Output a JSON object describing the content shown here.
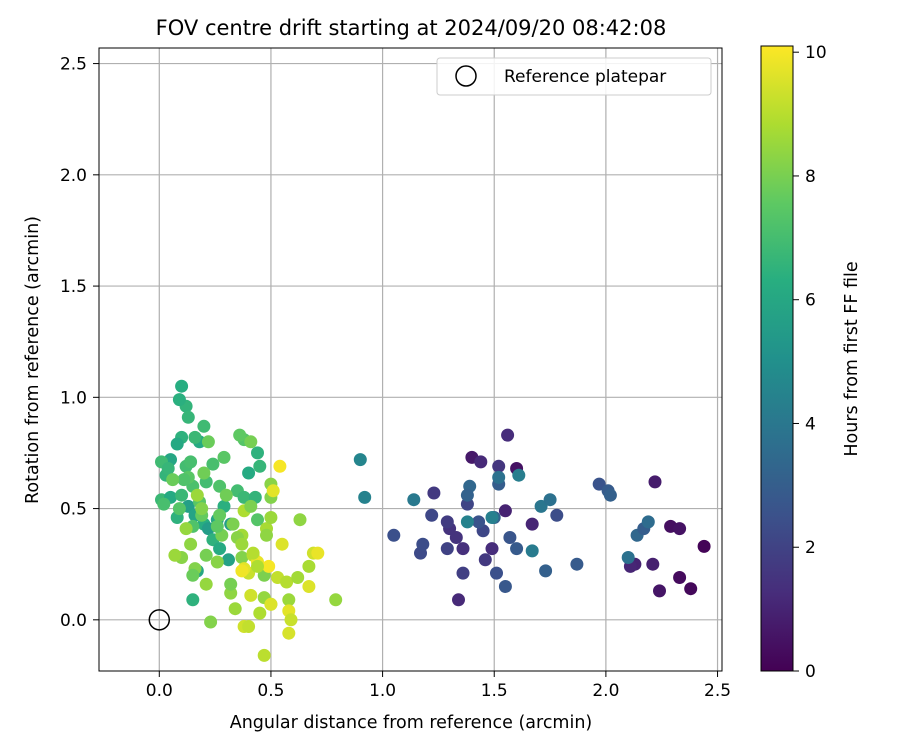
{
  "chart_data": {
    "type": "scatter",
    "title": "FOV centre drift starting at 2024/09/20 08:42:08",
    "xlabel": "Angular distance from reference (arcmin)",
    "ylabel": "Rotation from reference (arcmin)",
    "xlim": [
      -0.27,
      2.52
    ],
    "ylim": [
      -0.23,
      2.57
    ],
    "xticks": [
      0.0,
      0.5,
      1.0,
      1.5,
      2.0,
      2.5
    ],
    "xtick_labels": [
      "0.0",
      "0.5",
      "1.0",
      "1.5",
      "2.0",
      "2.5"
    ],
    "yticks": [
      0.0,
      0.5,
      1.0,
      1.5,
      2.0,
      2.5
    ],
    "ytick_labels": [
      "0.0",
      "0.5",
      "1.0",
      "1.5",
      "2.0",
      "2.5"
    ],
    "grid": true,
    "legend": {
      "placement": "upper right",
      "entries": [
        {
          "label": "Reference platepar",
          "marker": "open-circle",
          "x": 0.0,
          "y": 0.0
        }
      ]
    },
    "colorbar": {
      "label": "Hours from first FF file",
      "colormap": "viridis",
      "range": [
        0,
        10.1
      ],
      "ticks": [
        0,
        2,
        4,
        6,
        8,
        10
      ],
      "tick_labels": [
        "0",
        "2",
        "4",
        "6",
        "8",
        "10"
      ]
    },
    "points": [
      [
        2.44,
        0.33,
        0.1
      ],
      [
        2.38,
        0.14,
        0.2
      ],
      [
        2.33,
        0.19,
        0.3
      ],
      [
        2.29,
        0.42,
        0.4
      ],
      [
        2.33,
        0.41,
        0.5
      ],
      [
        2.24,
        0.13,
        0.6
      ],
      [
        2.22,
        0.62,
        0.8
      ],
      [
        2.21,
        0.25,
        0.9
      ],
      [
        2.13,
        0.25,
        1.0
      ],
      [
        2.11,
        0.24,
        1.1
      ],
      [
        1.55,
        0.49,
        1.0
      ],
      [
        1.6,
        0.68,
        0.5
      ],
      [
        1.4,
        0.73,
        0.7
      ],
      [
        1.44,
        0.71,
        1.2
      ],
      [
        1.67,
        0.43,
        1.1
      ],
      [
        1.52,
        0.69,
        1.6
      ],
      [
        1.36,
        0.32,
        1.4
      ],
      [
        1.49,
        0.32,
        1.3
      ],
      [
        1.3,
        0.41,
        1.5
      ],
      [
        1.23,
        0.57,
        1.7
      ],
      [
        1.29,
        0.44,
        1.8
      ],
      [
        1.33,
        0.37,
        1.5
      ],
      [
        1.38,
        0.52,
        2.1
      ],
      [
        1.46,
        0.27,
        1.7
      ],
      [
        1.36,
        0.21,
        1.9
      ],
      [
        1.34,
        0.09,
        1.2
      ],
      [
        1.29,
        0.32,
        2.0
      ],
      [
        1.22,
        0.47,
        2.2
      ],
      [
        1.17,
        0.3,
        2.3
      ],
      [
        1.18,
        0.34,
        2.4
      ],
      [
        1.05,
        0.38,
        2.5
      ],
      [
        1.45,
        0.4,
        2.2
      ],
      [
        1.43,
        0.44,
        2.6
      ],
      [
        1.51,
        0.21,
        2.5
      ],
      [
        1.55,
        0.15,
        2.8
      ],
      [
        1.56,
        0.83,
        1.3
      ],
      [
        1.57,
        0.37,
        2.7
      ],
      [
        1.6,
        0.32,
        2.9
      ],
      [
        1.5,
        0.46,
        3.2
      ],
      [
        1.52,
        0.61,
        3.0
      ],
      [
        1.73,
        0.22,
        3.1
      ],
      [
        1.78,
        0.47,
        2.4
      ],
      [
        1.87,
        0.25,
        2.9
      ],
      [
        1.97,
        0.61,
        2.6
      ],
      [
        2.01,
        0.58,
        2.9
      ],
      [
        2.02,
        0.56,
        3.1
      ],
      [
        2.1,
        0.28,
        3.8
      ],
      [
        2.14,
        0.38,
        3.4
      ],
      [
        2.17,
        0.41,
        3.0
      ],
      [
        2.19,
        0.44,
        3.6
      ],
      [
        1.39,
        0.6,
        3.4
      ],
      [
        1.38,
        0.56,
        3.2
      ],
      [
        1.52,
        0.64,
        3.8
      ],
      [
        1.61,
        0.65,
        4.3
      ],
      [
        1.71,
        0.51,
        4.0
      ],
      [
        1.75,
        0.54,
        3.8
      ],
      [
        1.67,
        0.31,
        4.2
      ],
      [
        1.49,
        0.46,
        4.4
      ],
      [
        1.38,
        0.44,
        4.5
      ],
      [
        1.14,
        0.54,
        4.1
      ],
      [
        0.9,
        0.72,
        4.6
      ],
      [
        0.92,
        0.55,
        4.5
      ],
      [
        0.1,
        1.05,
        6.3
      ],
      [
        0.12,
        0.96,
        6.6
      ],
      [
        0.09,
        0.99,
        6.4
      ],
      [
        0.13,
        0.91,
        6.7
      ],
      [
        0.2,
        0.87,
        6.9
      ],
      [
        0.18,
        0.8,
        6.2
      ],
      [
        0.1,
        0.82,
        6.5
      ],
      [
        0.16,
        0.82,
        6.8
      ],
      [
        0.08,
        0.79,
        6.1
      ],
      [
        0.05,
        0.72,
        6.0
      ],
      [
        0.01,
        0.71,
        6.9
      ],
      [
        0.03,
        0.65,
        6.6
      ],
      [
        0.12,
        0.69,
        7.0
      ],
      [
        0.14,
        0.71,
        7.1
      ],
      [
        0.04,
        0.68,
        6.7
      ],
      [
        0.01,
        0.54,
        6.8
      ],
      [
        0.05,
        0.55,
        6.2
      ],
      [
        0.08,
        0.46,
        6.5
      ],
      [
        0.1,
        0.56,
        6.8
      ],
      [
        0.13,
        0.51,
        5.7
      ],
      [
        0.16,
        0.47,
        5.9
      ],
      [
        0.2,
        0.43,
        6.3
      ],
      [
        0.22,
        0.41,
        5.6
      ],
      [
        0.26,
        0.45,
        6.0
      ],
      [
        0.29,
        0.51,
        6.4
      ],
      [
        0.32,
        0.43,
        5.6
      ],
      [
        0.24,
        0.36,
        6.5
      ],
      [
        0.27,
        0.32,
        6.2
      ],
      [
        0.31,
        0.27,
        5.8
      ],
      [
        0.17,
        0.22,
        6.0
      ],
      [
        0.15,
        0.42,
        7.3
      ],
      [
        0.09,
        0.5,
        7.4
      ],
      [
        0.18,
        0.53,
        7.5
      ],
      [
        0.15,
        0.6,
        7.2
      ],
      [
        0.21,
        0.62,
        7.0
      ],
      [
        0.24,
        0.7,
        7.1
      ],
      [
        0.27,
        0.6,
        7.3
      ],
      [
        0.29,
        0.73,
        7.5
      ],
      [
        0.35,
        0.58,
        7.0
      ],
      [
        0.38,
        0.55,
        6.8
      ],
      [
        0.43,
        0.55,
        6.6
      ],
      [
        0.45,
        0.69,
        6.7
      ],
      [
        0.44,
        0.75,
        6.5
      ],
      [
        0.4,
        0.66,
        6.2
      ],
      [
        0.38,
        0.81,
        7.4
      ],
      [
        0.36,
        0.83,
        7.6
      ],
      [
        0.41,
        0.8,
        8.0
      ],
      [
        0.22,
        0.8,
        7.8
      ],
      [
        0.2,
        0.66,
        7.9
      ],
      [
        0.27,
        0.47,
        7.7
      ],
      [
        0.26,
        0.26,
        8.3
      ],
      [
        0.21,
        0.29,
        8.0
      ],
      [
        0.16,
        0.23,
        8.2
      ],
      [
        0.14,
        0.34,
        8.4
      ],
      [
        0.12,
        0.41,
        8.5
      ],
      [
        0.1,
        0.28,
        8.3
      ],
      [
        0.07,
        0.29,
        8.6
      ],
      [
        0.15,
        0.2,
        7.8
      ],
      [
        0.15,
        0.09,
        6.5
      ],
      [
        0.21,
        0.16,
        8.5
      ],
      [
        0.23,
        -0.01,
        8.2
      ],
      [
        0.32,
        0.12,
        8.4
      ],
      [
        0.34,
        0.05,
        8.6
      ],
      [
        0.32,
        0.16,
        8.0
      ],
      [
        0.37,
        0.28,
        8.2
      ],
      [
        0.37,
        0.38,
        8.7
      ],
      [
        0.38,
        0.49,
        8.9
      ],
      [
        0.41,
        0.51,
        8.1
      ],
      [
        0.44,
        0.45,
        7.4
      ],
      [
        0.48,
        0.41,
        8.8
      ],
      [
        0.5,
        0.46,
        8.6
      ],
      [
        0.48,
        0.38,
        8.4
      ],
      [
        0.5,
        0.55,
        8.2
      ],
      [
        0.5,
        0.61,
        8.3
      ],
      [
        0.53,
        0.19,
        9.2
      ],
      [
        0.57,
        0.17,
        9.0
      ],
      [
        0.55,
        0.34,
        9.6
      ],
      [
        0.47,
        0.2,
        8.1
      ],
      [
        0.47,
        0.1,
        8.5
      ],
      [
        0.5,
        0.07,
        8.8
      ],
      [
        0.45,
        0.03,
        8.9
      ],
      [
        0.47,
        -0.16,
        9.1
      ],
      [
        0.58,
        0.09,
        8.6
      ],
      [
        0.58,
        0.04,
        9.7
      ],
      [
        0.59,
        0.0,
        9.3
      ],
      [
        0.58,
        -0.06,
        9.5
      ],
      [
        0.42,
        0.29,
        9.1
      ],
      [
        0.4,
        0.21,
        9.3
      ],
      [
        0.38,
        0.23,
        9.7
      ],
      [
        0.37,
        0.22,
        9.9
      ],
      [
        0.41,
        0.11,
        9.4
      ],
      [
        0.44,
        0.26,
        9.8
      ],
      [
        0.49,
        0.24,
        10.0
      ],
      [
        0.5,
        0.07,
        9.6
      ],
      [
        0.38,
        -0.03,
        9.4
      ],
      [
        0.4,
        -0.03,
        9.2
      ],
      [
        0.35,
        0.37,
        8.3
      ],
      [
        0.33,
        0.43,
        8.1
      ],
      [
        0.3,
        0.56,
        7.9
      ],
      [
        0.28,
        0.38,
        8.0
      ],
      [
        0.26,
        0.42,
        7.6
      ],
      [
        0.19,
        0.47,
        7.7
      ],
      [
        0.17,
        0.56,
        8.6
      ],
      [
        0.19,
        0.5,
        8.2
      ],
      [
        0.13,
        0.64,
        7.5
      ],
      [
        0.11,
        0.63,
        7.3
      ],
      [
        0.06,
        0.63,
        7.8
      ],
      [
        0.02,
        0.52,
        7.1
      ],
      [
        0.54,
        0.69,
        10.0
      ],
      [
        0.69,
        0.3,
        9.4
      ],
      [
        0.67,
        0.24,
        8.8
      ],
      [
        0.67,
        0.15,
        9.6
      ],
      [
        0.62,
        0.19,
        8.7
      ],
      [
        0.63,
        0.45,
        8.4
      ],
      [
        0.79,
        0.09,
        8.5
      ],
      [
        0.71,
        0.3,
        9.8
      ],
      [
        0.51,
        0.58,
        9.7
      ],
      [
        0.42,
        0.3,
        9.0
      ],
      [
        0.44,
        0.24,
        8.9
      ],
      [
        0.37,
        0.34,
        8.6
      ]
    ]
  }
}
